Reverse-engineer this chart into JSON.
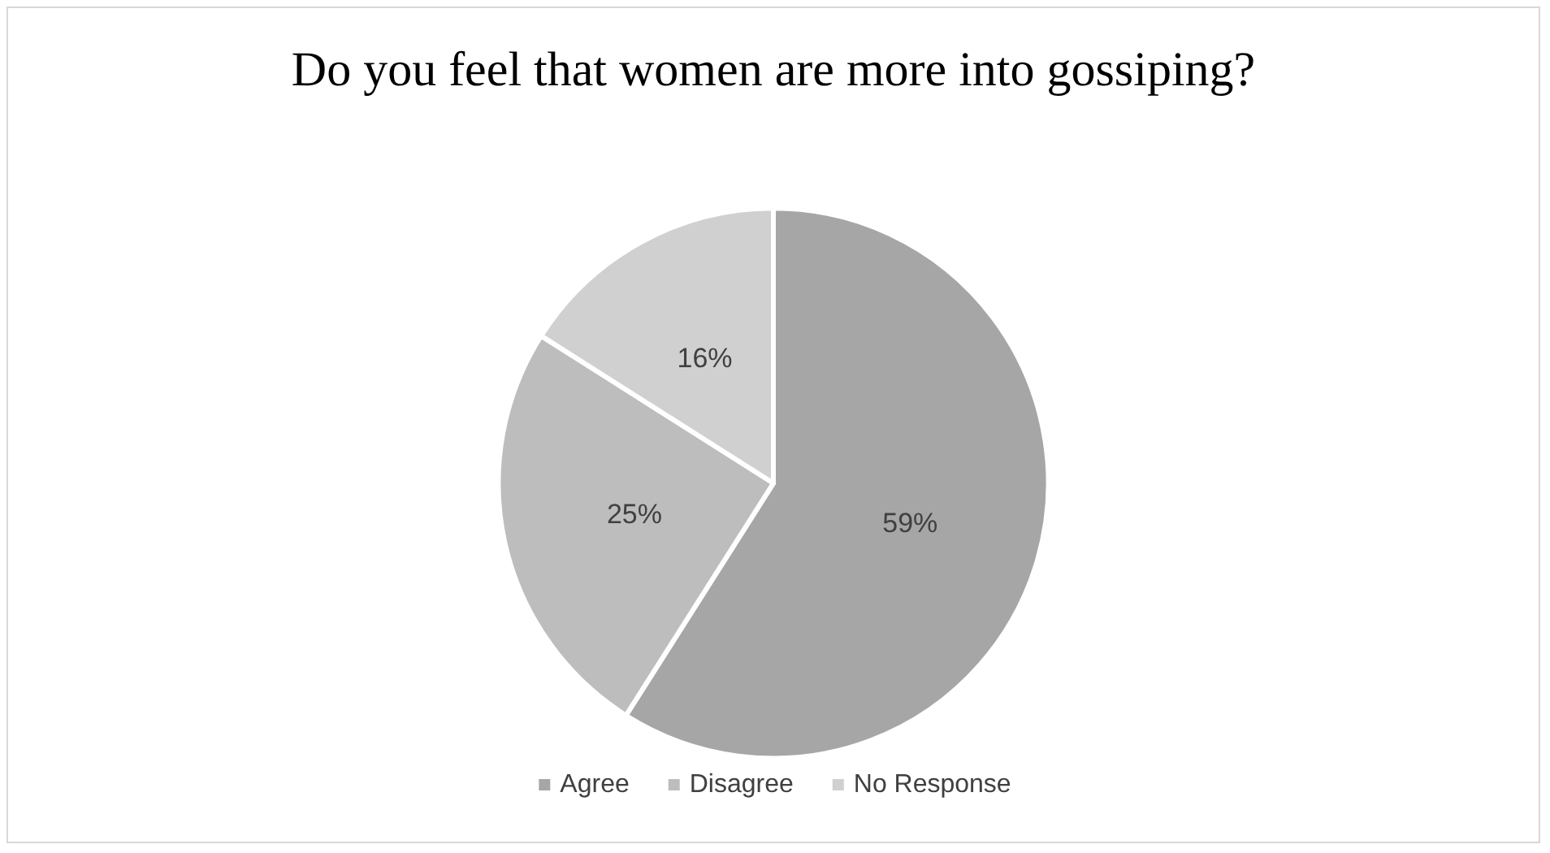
{
  "chart_data": {
    "type": "pie",
    "title": "Do you feel that women are more into gossiping?",
    "categories": [
      "Agree",
      "Disagree",
      "No Response"
    ],
    "values": [
      59,
      25,
      16
    ],
    "colors": [
      "#a6a6a6",
      "#bdbdbd",
      "#d0d0d0"
    ],
    "value_labels": [
      "59%",
      "25%",
      "16%"
    ],
    "legend": "bottom"
  }
}
